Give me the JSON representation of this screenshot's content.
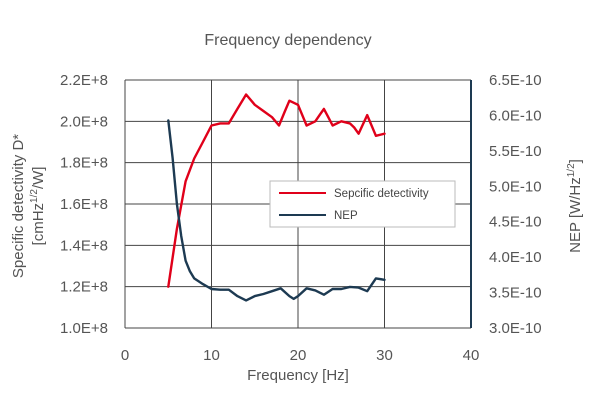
{
  "chart_data": {
    "type": "line",
    "title": "Frequency dependency",
    "xlabel": "Frequency [Hz]",
    "ylabel_left": {
      "main": "Specific detectivity D*",
      "sub_pre": "[cmHz",
      "sup": "1/2",
      "sub_post": "/W]"
    },
    "ylabel_right": {
      "pre": "NEP [W/Hz",
      "sup": "1/2",
      "post": "]"
    },
    "xlim": [
      0,
      40
    ],
    "ylim_left": [
      100000000,
      220000000
    ],
    "ylim_right": [
      3e-10,
      6.5e-10
    ],
    "x_ticks": [
      "0",
      "10",
      "20",
      "30",
      "40"
    ],
    "x_tick_values": [
      0,
      10,
      20,
      30,
      40
    ],
    "y_left_ticks": [
      "1.0E+8",
      "1.2E+8",
      "1.4E+8",
      "1.6E+8",
      "1.8E+8",
      "2.0E+8",
      "2.2E+8"
    ],
    "y_left_tick_values": [
      100000000,
      120000000,
      140000000,
      160000000,
      180000000,
      200000000,
      220000000
    ],
    "y_right_ticks": [
      "3.0E-10",
      "3.5E-10",
      "4.0E-10",
      "4.5E-10",
      "5.0E-10",
      "5.5E-10",
      "6.0E-10",
      "6.5E-10"
    ],
    "y_right_tick_values": [
      3e-10,
      3.5e-10,
      4e-10,
      4.5e-10,
      5e-10,
      5.5e-10,
      6e-10,
      6.5e-10
    ],
    "grid": true,
    "legend_position": "center-right",
    "series": [
      {
        "name": "Sepcific detectivity",
        "axis": "left",
        "color": "#e0001a",
        "x": [
          5,
          6,
          7,
          8,
          9,
          10,
          11,
          12,
          13,
          14,
          15,
          16,
          17,
          17.8,
          18.5,
          19,
          20,
          21,
          22,
          22.5,
          23,
          23.5,
          24,
          25,
          26,
          26.5,
          27,
          28,
          29,
          30
        ],
        "values": [
          120000000,
          148000000,
          171000000,
          182000000,
          190000000,
          198000000,
          199000000,
          199000000,
          206000000,
          213000000,
          208000000,
          205000000,
          202000000,
          198000000,
          205000000,
          210000000,
          208000000,
          198000000,
          200000000,
          203000000,
          206000000,
          202000000,
          198000000,
          200000000,
          199000000,
          197000000,
          194000000,
          203000000,
          193000000,
          194000000
        ]
      },
      {
        "name": "NEP",
        "axis": "right",
        "color": "#1d3a52",
        "x": [
          5,
          5.5,
          6,
          6.5,
          7,
          7.5,
          8,
          9,
          10,
          11,
          12,
          13,
          14,
          15,
          16,
          17,
          18,
          19,
          19.5,
          20,
          21,
          22,
          23,
          24,
          25,
          26,
          27,
          28,
          29,
          30
        ],
        "values": [
          5.93e-10,
          5.4e-10,
          4.75e-10,
          4.3e-10,
          3.95e-10,
          3.8e-10,
          3.7e-10,
          3.62e-10,
          3.55e-10,
          3.54e-10,
          3.54e-10,
          3.45e-10,
          3.39e-10,
          3.45e-10,
          3.48e-10,
          3.52e-10,
          3.56e-10,
          3.45e-10,
          3.41e-10,
          3.45e-10,
          3.56e-10,
          3.53e-10,
          3.47e-10,
          3.55e-10,
          3.55e-10,
          3.58e-10,
          3.57e-10,
          3.52e-10,
          3.7e-10,
          3.68e-10
        ]
      }
    ]
  }
}
